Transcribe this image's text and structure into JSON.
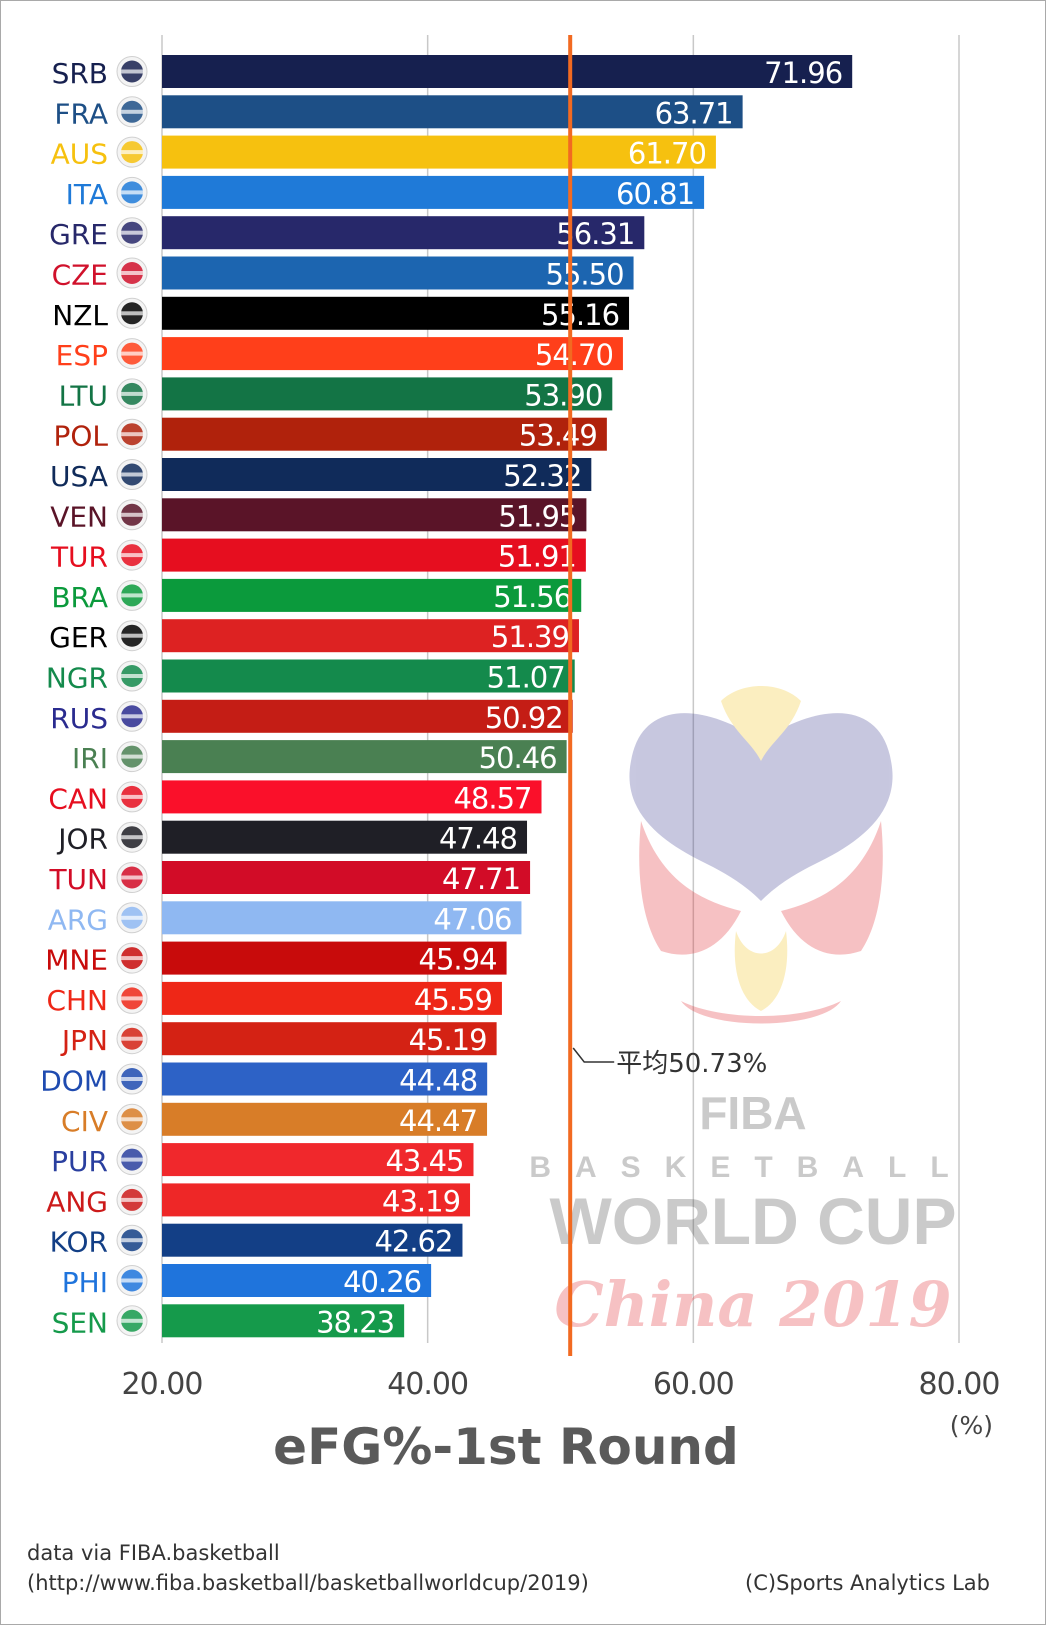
{
  "chart_data": {
    "type": "bar",
    "orientation": "horizontal",
    "title": "eFG%-1st Round",
    "unit": "(%)",
    "xlim": [
      20,
      80
    ],
    "xticks": [
      "20.00",
      "40.00",
      "60.00",
      "80.00"
    ],
    "grid": true,
    "average": {
      "value": 50.73,
      "label": "平均50.73%",
      "color": "#f26a21"
    },
    "categories": [
      "SRB",
      "FRA",
      "AUS",
      "ITA",
      "GRE",
      "CZE",
      "NZL",
      "ESP",
      "LTU",
      "POL",
      "USA",
      "VEN",
      "TUR",
      "BRA",
      "GER",
      "NGR",
      "RUS",
      "IRI",
      "CAN",
      "JOR",
      "TUN",
      "ARG",
      "MNE",
      "CHN",
      "JPN",
      "DOM",
      "CIV",
      "PUR",
      "ANG",
      "KOR",
      "PHI",
      "SEN"
    ],
    "values": [
      71.96,
      63.71,
      61.7,
      60.81,
      56.31,
      55.5,
      55.16,
      54.7,
      53.9,
      53.49,
      52.32,
      51.95,
      51.91,
      51.56,
      51.39,
      51.07,
      50.92,
      50.46,
      48.57,
      47.48,
      47.71,
      47.06,
      45.94,
      45.59,
      45.19,
      44.48,
      44.47,
      43.45,
      43.19,
      42.62,
      40.26,
      38.23
    ],
    "value_labels": [
      "71.96",
      "63.71",
      "61.70",
      "60.81",
      "56.31",
      "55.50",
      "55.16",
      "54.70",
      "53.90",
      "53.49",
      "52.32",
      "51.95",
      "51.91",
      "51.56",
      "51.39",
      "51.07",
      "50.92",
      "50.46",
      "48.57",
      "47.48",
      "47.71",
      "47.06",
      "45.94",
      "45.59",
      "45.19",
      "44.48",
      "44.47",
      "43.45",
      "43.19",
      "42.62",
      "40.26",
      "38.23"
    ],
    "bar_colors": [
      "#16204f",
      "#1d4f86",
      "#f6c10f",
      "#1f7ad8",
      "#27286a",
      "#1c65b0",
      "#000000",
      "#ff3f1a",
      "#137445",
      "#b0220c",
      "#102b5a",
      "#5a1428",
      "#e60e1f",
      "#0b9a3c",
      "#dd2222",
      "#148a4c",
      "#c41d15",
      "#4a8052",
      "#fa102a",
      "#1f1f26",
      "#d20c27",
      "#8fb8f2",
      "#c80b0b",
      "#ee2717",
      "#d42214",
      "#2d62c6",
      "#d87d28",
      "#f0282c",
      "#ee2727",
      "#133f86",
      "#1f74dc",
      "#159a4b"
    ],
    "label_colors": [
      "#16204f",
      "#1d4f86",
      "#f6c10f",
      "#1f7ad8",
      "#27286a",
      "#d0112b",
      "#000000",
      "#ff3f1a",
      "#137445",
      "#b0220c",
      "#102b5a",
      "#5a1428",
      "#e60e1f",
      "#0b9a3c",
      "#000000",
      "#148a4c",
      "#2a2b8f",
      "#4a8052",
      "#e60e1f",
      "#1f1f26",
      "#d20c27",
      "#8fb8f2",
      "#c80b0b",
      "#ee2717",
      "#d42214",
      "#1f4bb0",
      "#d87d28",
      "#2a3f9f",
      "#cc1a1a",
      "#133f86",
      "#1f74dc",
      "#159a4b"
    ],
    "flag_icons": [
      "serbia-flag",
      "france-flag",
      "australia-flag",
      "italy-flag",
      "greece-flag",
      "czechia-flag",
      "new-zealand-flag",
      "spain-flag",
      "lithuania-flag",
      "poland-flag",
      "usa-flag",
      "venezuela-flag",
      "turkey-flag",
      "brazil-flag",
      "germany-flag",
      "nigeria-flag",
      "russia-flag",
      "iran-flag",
      "canada-flag",
      "jordan-flag",
      "tunisia-flag",
      "argentina-flag",
      "montenegro-flag",
      "china-flag",
      "japan-flag",
      "dominican-republic-flag",
      "ivory-coast-flag",
      "puerto-rico-flag",
      "angola-flag",
      "korea-flag",
      "philippines-flag",
      "senegal-flag"
    ]
  },
  "watermark": {
    "icon": "fiba-world-cup-logo",
    "lines": [
      "FIBA",
      "BASKETBALL",
      "WORLD CUP",
      "China 2019"
    ]
  },
  "footer": {
    "source_line1": "data via FIBA.basketball",
    "source_line2": "(http://www.fiba.basketball/basketballworldcup/2019)",
    "credit": "(C)Sports Analytics Lab"
  }
}
